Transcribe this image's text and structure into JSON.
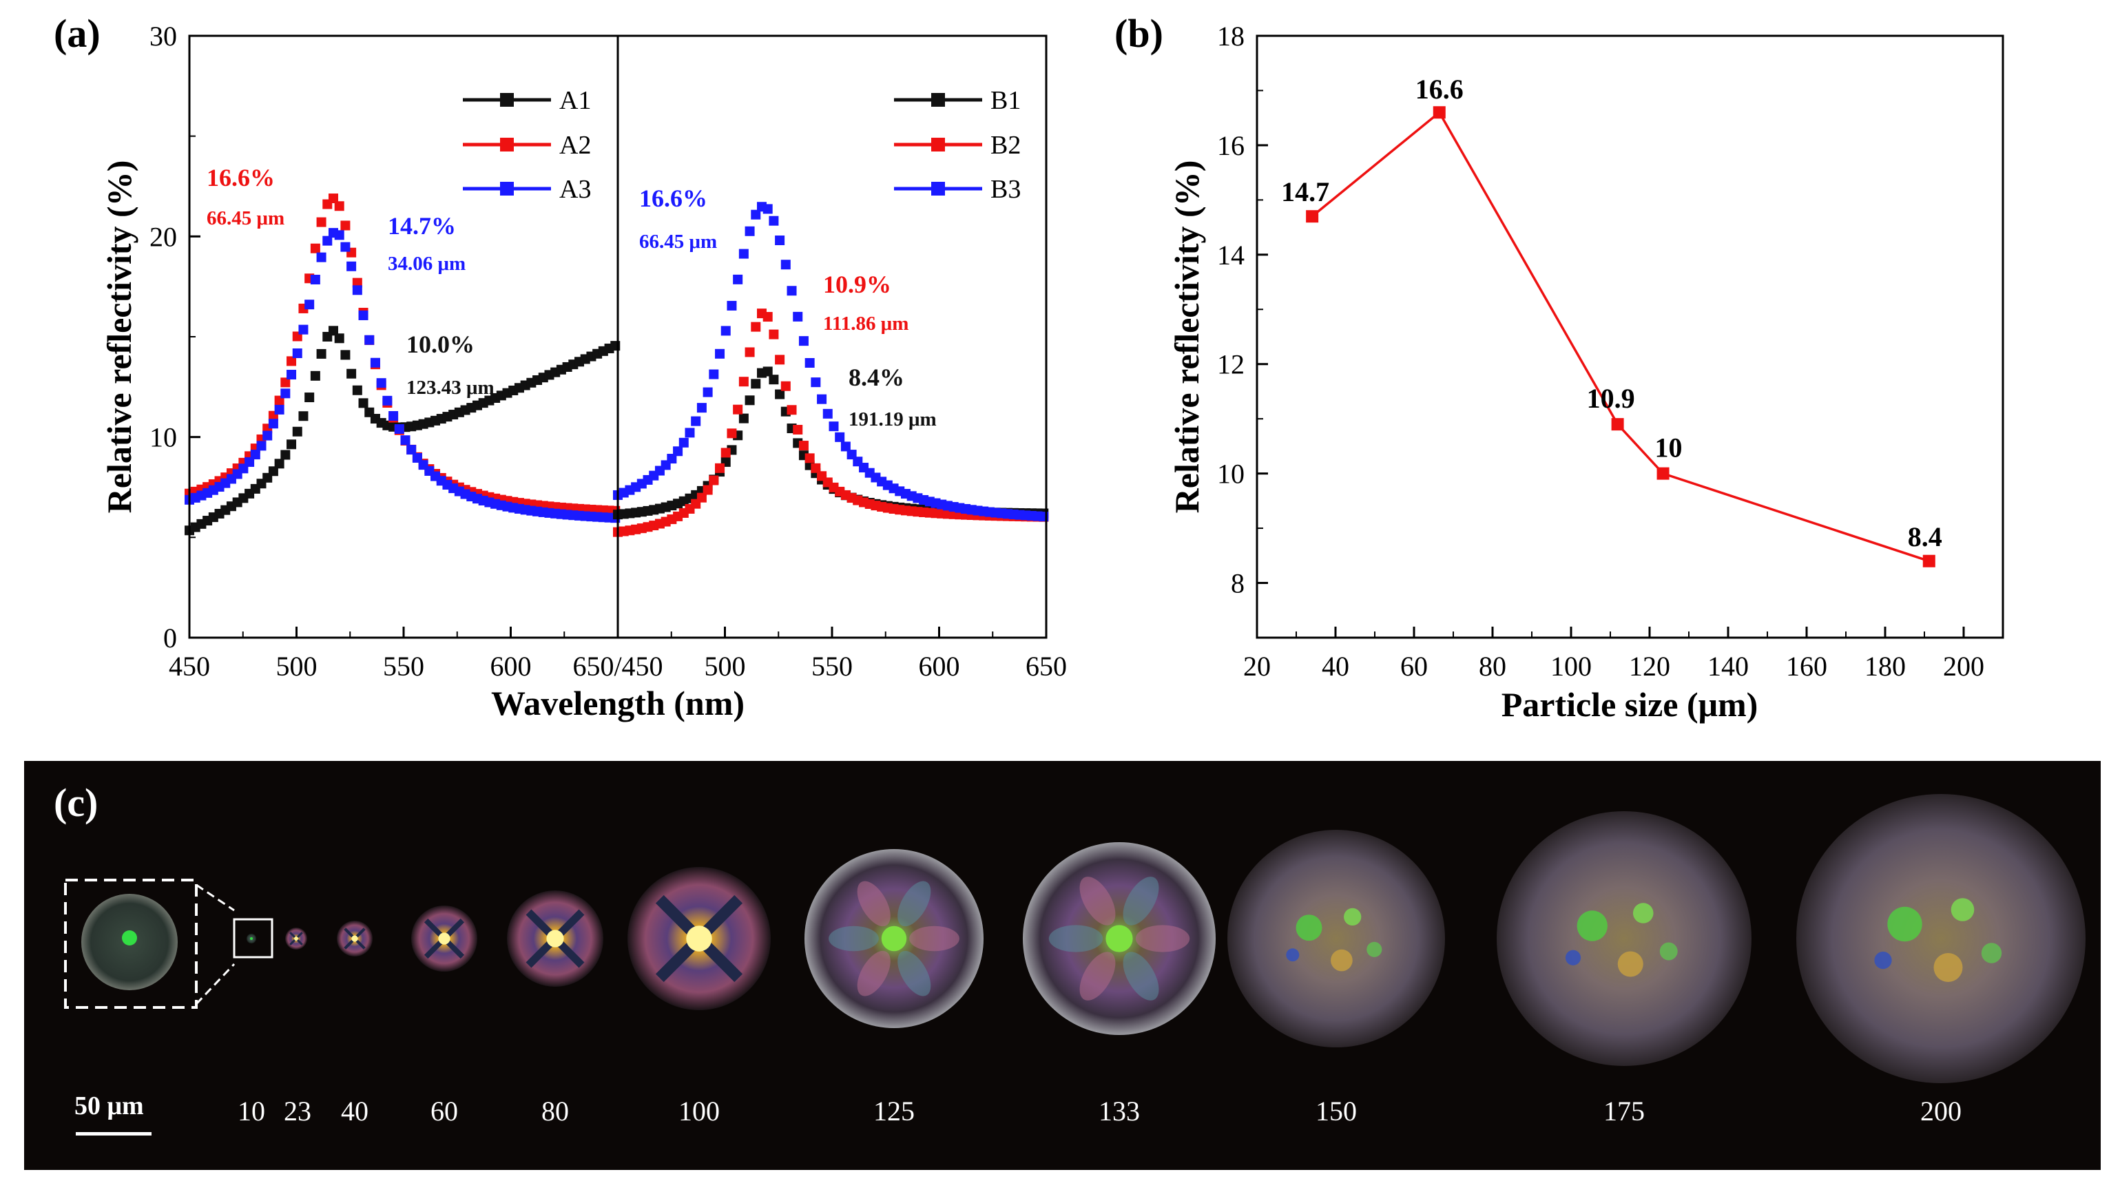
{
  "colors": {
    "black": "#111111",
    "red": "#ee1111",
    "blue": "#1a1aff",
    "micro_bg": "#0b0706",
    "white": "#ffffff"
  },
  "panels": {
    "a": "(a)",
    "b": "(b)",
    "c": "(c)"
  },
  "chart_data": [
    {
      "id": "a_left",
      "type": "line",
      "marker": "square",
      "title": "",
      "xlabel": "Wavelength (nm)",
      "ylabel": "Relative reflectivity (%)",
      "xlim": [
        450,
        650
      ],
      "ylim": [
        0,
        30
      ],
      "xticks": [
        450,
        500,
        550,
        600,
        650
      ],
      "yticks": [
        0,
        10,
        20,
        30
      ],
      "x_tick_labels": [
        "450",
        "500",
        "550",
        "600",
        "650/450"
      ],
      "y_tick_labels": [
        "0",
        "10",
        "20",
        "30"
      ],
      "legend_position": "top-right",
      "series": [
        {
          "name": "A1",
          "color": "#111111",
          "base": 5.0,
          "slope": 1.2,
          "tail": 6.2,
          "peak": 15.3,
          "center": 517,
          "width": 12.5
        },
        {
          "name": "A2",
          "color": "#ee1111",
          "base": 6.0,
          "slope": 0.0,
          "tail": 6.0,
          "peak": 21.9,
          "center": 517,
          "width": 19
        },
        {
          "name": "A3",
          "color": "#1a1aff",
          "base": 5.6,
          "slope": 0.0,
          "tail": 5.6,
          "peak": 20.2,
          "center": 518,
          "width": 21
        }
      ],
      "annotations": [
        {
          "series": "A2",
          "value": "16.6%",
          "size": "66.45 μm"
        },
        {
          "series": "A3",
          "value": "14.7%",
          "size": "34.06 μm"
        },
        {
          "series": "A1",
          "value": "10.0%",
          "size": "123.43 μm"
        }
      ]
    },
    {
      "id": "a_right",
      "type": "line",
      "marker": "square",
      "xlim": [
        450,
        650
      ],
      "ylim": [
        0,
        30
      ],
      "xticks": [
        500,
        550,
        600,
        650
      ],
      "x_tick_labels": [
        "500",
        "550",
        "600",
        "650"
      ],
      "legend_position": "top-right",
      "series": [
        {
          "name": "B1",
          "color": "#111111",
          "base": 5.8,
          "slope": 0.0,
          "tail": 6.1,
          "peak": 13.3,
          "center": 519,
          "width": 15
        },
        {
          "name": "B2",
          "color": "#ee1111",
          "base": 4.8,
          "slope": 0.0,
          "tail": 5.9,
          "peak": 16.2,
          "center": 518,
          "width": 14
        },
        {
          "name": "B3",
          "color": "#1a1aff",
          "base": 5.6,
          "slope": 0.0,
          "tail": 5.4,
          "peak": 21.5,
          "center": 518,
          "width": 22
        }
      ],
      "annotations": [
        {
          "series": "B3",
          "value": "16.6%",
          "size": "66.45 μm"
        },
        {
          "series": "B2",
          "value": "10.9%",
          "size": "111.86 μm"
        },
        {
          "series": "B1",
          "value": "8.4%",
          "size": "191.19 μm"
        }
      ]
    },
    {
      "id": "b",
      "type": "line",
      "marker": "square",
      "color": "#ee1111",
      "title": "",
      "xlabel": "Particle size (μm)",
      "ylabel": "Relative reflectivity (%)",
      "xlim": [
        20,
        210
      ],
      "ylim": [
        7,
        18
      ],
      "xticks": [
        20,
        40,
        60,
        80,
        100,
        120,
        140,
        160,
        180,
        200
      ],
      "yticks": [
        8,
        10,
        12,
        14,
        16,
        18
      ],
      "x": [
        34.06,
        66.45,
        111.86,
        123.43,
        191.19
      ],
      "y": [
        14.7,
        16.6,
        10.9,
        10.0,
        8.4
      ],
      "point_labels": [
        "14.7",
        "16.6",
        "10.9",
        "10",
        "8.4"
      ]
    }
  ],
  "micrographs": {
    "scale_bar": "50 μm",
    "particles": [
      {
        "label": "10",
        "kind": "tiny"
      },
      {
        "label": "23",
        "kind": "cross"
      },
      {
        "label": "40",
        "kind": "cross"
      },
      {
        "label": "60",
        "kind": "cross"
      },
      {
        "label": "80",
        "kind": "cross"
      },
      {
        "label": "100",
        "kind": "cross"
      },
      {
        "label": "125",
        "kind": "rosette"
      },
      {
        "label": "133",
        "kind": "rosette"
      },
      {
        "label": "150",
        "kind": "mottled"
      },
      {
        "label": "175",
        "kind": "mottled"
      },
      {
        "label": "200",
        "kind": "mottled"
      }
    ]
  }
}
